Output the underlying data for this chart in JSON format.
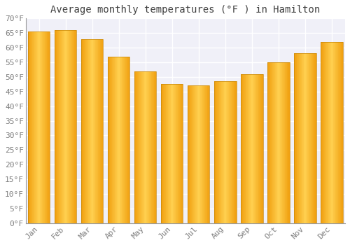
{
  "title": "Average monthly temperatures (°F ) in Hamilton",
  "months": [
    "Jan",
    "Feb",
    "Mar",
    "Apr",
    "May",
    "Jun",
    "Jul",
    "Aug",
    "Sep",
    "Oct",
    "Nov",
    "Dec"
  ],
  "values": [
    65.5,
    66.0,
    63.0,
    57.0,
    52.0,
    47.5,
    47.0,
    48.5,
    51.0,
    55.0,
    58.0,
    62.0
  ],
  "bar_color_left": "#F0A010",
  "bar_color_center": "#FFD050",
  "bar_color_right": "#F0A010",
  "bar_edge_color": "#C8880A",
  "background_color": "#FFFFFF",
  "plot_bg_color": "#F0F0F8",
  "grid_color": "#FFFFFF",
  "ylim": [
    0,
    70
  ],
  "ytick_step": 5,
  "title_fontsize": 10,
  "tick_fontsize": 8,
  "font_family": "monospace"
}
